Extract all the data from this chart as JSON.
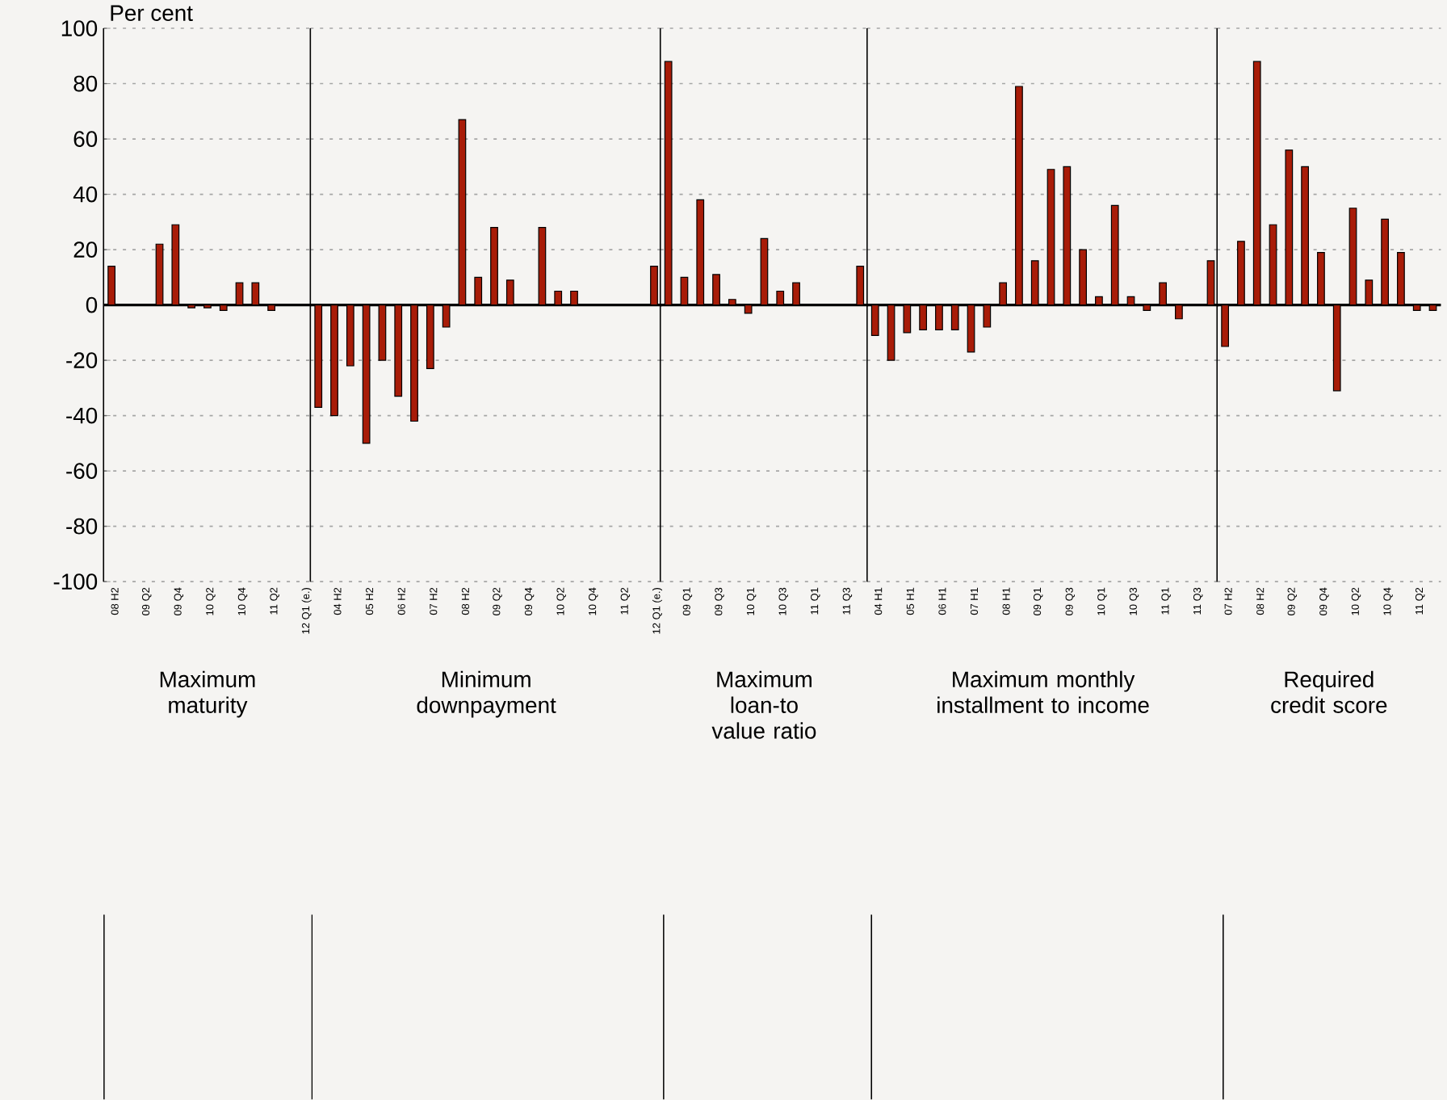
{
  "chart_data": [
    {
      "type": "bar",
      "title": "Maximum maturity",
      "ylabel": "Per cent",
      "color": "#a81c08",
      "grid": "y",
      "ylim": [
        -100,
        100
      ],
      "yticks": [
        -100,
        -80,
        -60,
        -40,
        -20,
        0,
        20,
        40,
        60,
        80,
        100
      ],
      "categories": [
        "08 H2",
        null,
        "09 Q2",
        null,
        "09 Q4",
        null,
        "10 Q2",
        null,
        "10 Q4",
        null,
        "11 Q2",
        null,
        "12 Q1 (e.)"
      ],
      "values": [
        14,
        null,
        null,
        22,
        29,
        -1,
        -1,
        -2,
        8,
        8,
        -2,
        null,
        null
      ]
    },
    {
      "type": "bar",
      "title": "Minimum downpayment",
      "color": "#a81c08",
      "grid": "y",
      "ylim": [
        -100,
        100
      ],
      "tick_labels": "x",
      "categories": [
        null,
        "04 H2",
        null,
        "05 H2",
        null,
        "06 H2",
        null,
        "07 H2",
        null,
        "08 H2",
        null,
        "09 Q2",
        null,
        "09 Q4",
        null,
        "10 Q2",
        null,
        "10 Q4",
        null,
        "11 Q2",
        null,
        "12 Q1 (e.)"
      ],
      "values": [
        -37,
        -40,
        -22,
        -50,
        -20,
        -33,
        -42,
        -23,
        -8,
        67,
        10,
        28,
        9,
        null,
        28,
        5,
        5,
        null,
        null,
        null,
        null,
        14
      ]
    },
    {
      "type": "bar",
      "title": "Maximum loan-to value ratio",
      "color": "#a81c08",
      "grid": "y",
      "ylim": [
        -100,
        100
      ],
      "tick_labels": "x",
      "categories": [
        null,
        "09 Q1",
        null,
        "09 Q3",
        null,
        "10 Q1",
        null,
        "10 Q3",
        null,
        "11 Q1",
        null,
        "11 Q3",
        null
      ],
      "values": [
        88,
        10,
        38,
        11,
        2,
        -3,
        24,
        5,
        8,
        null,
        null,
        null,
        14
      ]
    },
    {
      "type": "bar",
      "title": "Maximum monthly installment to income",
      "color": "#a81c08",
      "grid": "y",
      "ylim": [
        -100,
        100
      ],
      "tick_labels": "x",
      "categories": [
        "04 H1",
        null,
        "05 H1",
        null,
        "06 H1",
        null,
        "07 H1",
        null,
        "08 H1",
        null,
        "09 Q1",
        null,
        "09 Q3",
        null,
        "10 Q1",
        null,
        "10 Q3",
        null,
        "11 Q1",
        null,
        "11 Q3",
        null
      ],
      "values": [
        -11,
        -20,
        -10,
        -9,
        -9,
        -9,
        -17,
        -8,
        8,
        79,
        16,
        49,
        50,
        20,
        3,
        36,
        3,
        -2,
        8,
        -5,
        null,
        16
      ]
    },
    {
      "type": "bar",
      "title": "Required credit score",
      "color": "#a81c08",
      "grid": "y",
      "ylim": [
        -100,
        100
      ],
      "tick_labels": "x",
      "categories": [
        "07 H2",
        null,
        "08 H2",
        null,
        "09 Q2",
        null,
        "09 Q4",
        null,
        "10 Q2",
        null,
        "10 Q4",
        null,
        "11 Q2",
        null
      ],
      "values": [
        -15,
        23,
        88,
        29,
        56,
        50,
        19,
        -31,
        35,
        9,
        31,
        19,
        -2,
        -2
      ]
    }
  ]
}
